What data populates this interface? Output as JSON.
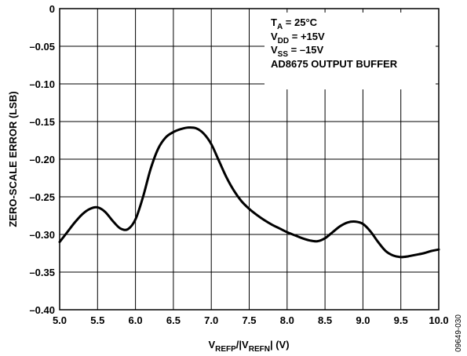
{
  "chart_data": {
    "type": "line",
    "xlabel": {
      "main": "V",
      "sub1": "REFP",
      "mid": "/|V",
      "sub2": "REFN",
      "tail": "| (V)"
    },
    "ylabel": "ZERO-SCALE ERROR (LSB)",
    "xlim": [
      5.0,
      10.0
    ],
    "ylim": [
      -0.4,
      0
    ],
    "x_ticks": [
      "5.0",
      "5.5",
      "6.0",
      "6.5",
      "7.0",
      "7.5",
      "8.0",
      "8.5",
      "9.0",
      "9.5",
      "10.0"
    ],
    "y_ticks": [
      "0",
      "–0.05",
      "–0.10",
      "–0.15",
      "–0.20",
      "–0.25",
      "–0.30",
      "–0.35",
      "–0.40"
    ],
    "grid": true,
    "annotations": {
      "ta_main": "T",
      "ta_sub": "A",
      "ta_rest": " = 25°C",
      "vdd_main": "V",
      "vdd_sub": "DD",
      "vdd_rest": " = +15V",
      "vss_main": "V",
      "vss_sub": "SS",
      "vss_rest": " = –15V",
      "buffer": "AD8675 OUTPUT BUFFER"
    },
    "figure_code": "09649-030",
    "series": [
      {
        "x": [
          5.0,
          5.1,
          5.2,
          5.3,
          5.4,
          5.5,
          5.6,
          5.7,
          5.8,
          5.9,
          6.0,
          6.1,
          6.2,
          6.3,
          6.4,
          6.5,
          6.6,
          6.7,
          6.8,
          6.9,
          7.0,
          7.1,
          7.2,
          7.3,
          7.4,
          7.5,
          7.6,
          7.7,
          7.8,
          7.9,
          8.0,
          8.1,
          8.2,
          8.3,
          8.4,
          8.5,
          8.6,
          8.7,
          8.8,
          8.9,
          9.0,
          9.1,
          9.2,
          9.3,
          9.4,
          9.5,
          9.6,
          9.7,
          9.8,
          9.9,
          10.0
        ],
        "y": [
          -0.31,
          -0.297,
          -0.284,
          -0.273,
          -0.266,
          -0.264,
          -0.27,
          -0.282,
          -0.292,
          -0.293,
          -0.28,
          -0.25,
          -0.213,
          -0.186,
          -0.171,
          -0.164,
          -0.16,
          -0.158,
          -0.159,
          -0.166,
          -0.18,
          -0.202,
          -0.224,
          -0.242,
          -0.256,
          -0.266,
          -0.274,
          -0.281,
          -0.287,
          -0.292,
          -0.297,
          -0.301,
          -0.305,
          -0.308,
          -0.309,
          -0.305,
          -0.297,
          -0.289,
          -0.284,
          -0.283,
          -0.286,
          -0.296,
          -0.31,
          -0.322,
          -0.328,
          -0.33,
          -0.329,
          -0.327,
          -0.325,
          -0.322,
          -0.32
        ]
      }
    ]
  }
}
